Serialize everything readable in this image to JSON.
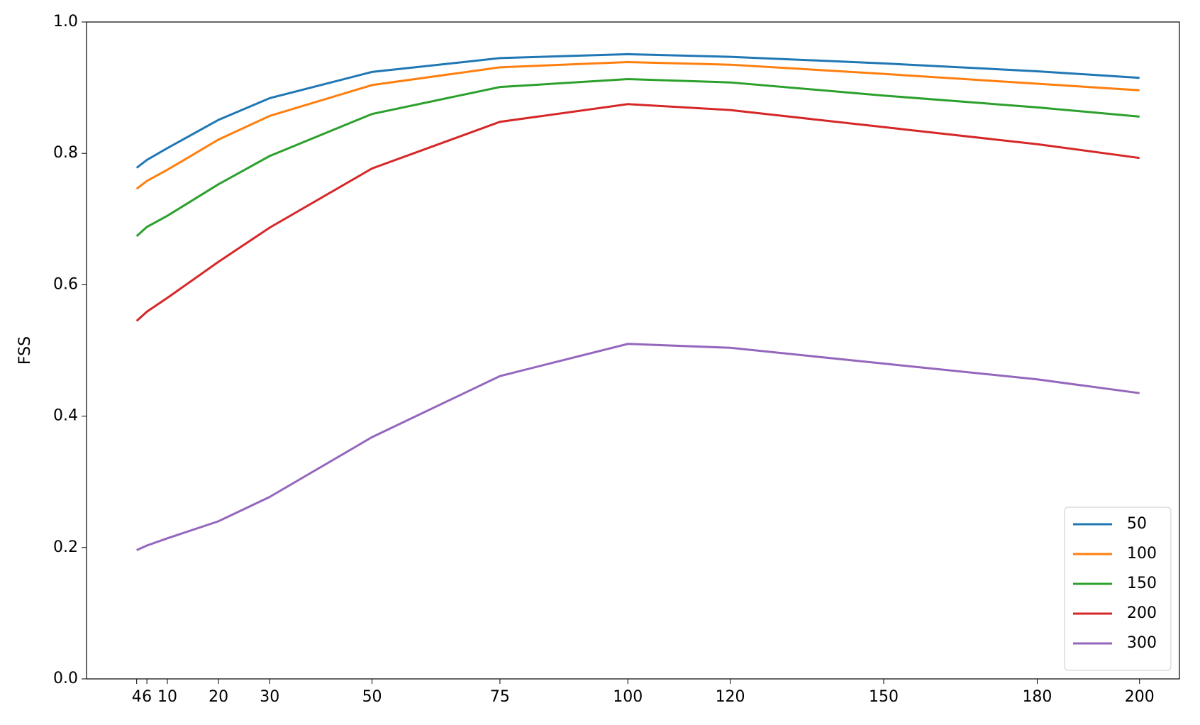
{
  "chart_data": {
    "type": "line",
    "ylabel": "FSS",
    "x": [
      4,
      6,
      10,
      20,
      30,
      50,
      75,
      100,
      120,
      150,
      180,
      200
    ],
    "series": [
      {
        "name": "50",
        "color": "#1f77b4",
        "values": [
          0.778,
          0.79,
          0.808,
          0.851,
          0.884,
          0.924,
          0.945,
          0.951,
          0.947,
          0.937,
          0.925,
          0.915
        ]
      },
      {
        "name": "100",
        "color": "#ff7f0e",
        "values": [
          0.746,
          0.758,
          0.775,
          0.821,
          0.857,
          0.904,
          0.931,
          0.939,
          0.935,
          0.921,
          0.906,
          0.896
        ]
      },
      {
        "name": "150",
        "color": "#2ca02c",
        "values": [
          0.674,
          0.688,
          0.705,
          0.753,
          0.796,
          0.86,
          0.901,
          0.913,
          0.908,
          0.888,
          0.87,
          0.856
        ]
      },
      {
        "name": "200",
        "color": "#d62728",
        "values": [
          0.545,
          0.559,
          0.58,
          0.635,
          0.687,
          0.777,
          0.848,
          0.875,
          0.866,
          0.84,
          0.814,
          0.793
        ]
      },
      {
        "name": "300",
        "color": "#9467bd",
        "values": [
          0.196,
          0.203,
          0.214,
          0.24,
          0.277,
          0.368,
          0.461,
          0.51,
          0.504,
          0.48,
          0.456,
          0.435
        ]
      }
    ],
    "xlim": [
      -5.8,
      207.8
    ],
    "xticks": [
      4,
      6,
      10,
      20,
      30,
      50,
      75,
      100,
      120,
      150,
      180,
      200
    ],
    "ylim": [
      0,
      1
    ],
    "yticks": [
      {
        "value": 0,
        "label": "0.0"
      },
      0.2,
      0.4,
      0.6,
      0.8,
      {
        "value": 1,
        "label": "1.0"
      }
    ],
    "legend": "lower right",
    "grid": false
  }
}
